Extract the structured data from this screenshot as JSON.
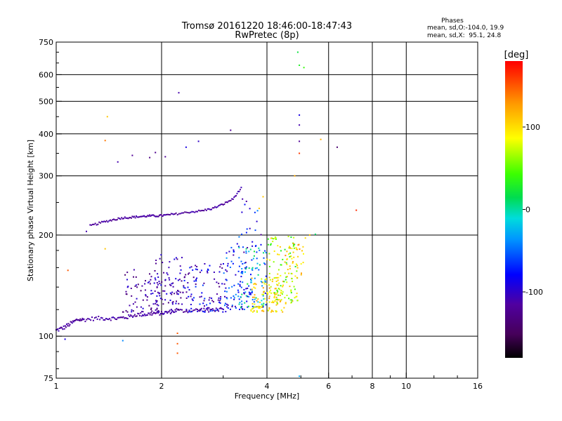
{
  "chart_data": {
    "type": "scatter",
    "title": "Tromsø 20161220 18:46:00-18:47:43",
    "subtitle": "RwPretec (8p)",
    "xlabel": "Frequency [MHz]",
    "ylabel": "Stationary phase Virtual Height [km]",
    "xscale": "log",
    "yscale": "log",
    "xlim": [
      1,
      16
    ],
    "ylim": [
      75,
      750
    ],
    "xticks": [
      1,
      2,
      4,
      6,
      8,
      10,
      16
    ],
    "yticks": [
      75,
      100,
      200,
      300,
      400,
      500,
      600,
      750
    ],
    "xgrid": [
      2,
      4,
      6,
      8,
      10
    ],
    "ygrid": [
      100,
      200,
      300,
      400,
      500,
      600
    ],
    "stats": {
      "heading": "Phases",
      "line1": "mean, sd,O:-104.0, 19.9",
      "line2": "mean, sd,X:  95.1, 24.8"
    },
    "colorbar": {
      "label": "[deg]",
      "min": -180,
      "max": 180,
      "ticks": [
        100,
        0,
        -100
      ],
      "tick_labels": [
        "100",
        "0",
        "-100"
      ]
    },
    "series_trace": [
      {
        "name": "F-trace lower",
        "phase": -115,
        "x": [
          1.0,
          1.05,
          1.1,
          1.15,
          1.2,
          1.3,
          1.4,
          1.5,
          1.6,
          1.7,
          1.8,
          1.9,
          2.0,
          2.1,
          2.2,
          2.4,
          2.6,
          2.8,
          3.0
        ],
        "y": [
          104,
          106,
          109,
          112,
          112,
          113,
          113,
          113,
          114,
          116,
          116,
          117,
          117,
          118,
          119,
          119,
          120,
          120,
          120
        ]
      },
      {
        "name": "F-trace upper",
        "phase": -115,
        "x": [
          1.25,
          1.35,
          1.45,
          1.55,
          1.65,
          1.75,
          1.85,
          1.95,
          2.05,
          2.2,
          2.4,
          2.6,
          2.8,
          3.0,
          3.2,
          3.4
        ],
        "y": [
          213,
          218,
          222,
          225,
          226,
          227,
          228,
          228,
          229,
          231,
          234,
          236,
          240,
          247,
          256,
          278
        ]
      }
    ],
    "series_scatter": [
      {
        "x": 1.22,
        "y": 205,
        "phase": -110
      },
      {
        "x": 1.38,
        "y": 382,
        "phase": 140
      },
      {
        "x": 1.4,
        "y": 450,
        "phase": 110
      },
      {
        "x": 1.38,
        "y": 182,
        "phase": 110
      },
      {
        "x": 1.08,
        "y": 157,
        "phase": 150
      },
      {
        "x": 1.06,
        "y": 98,
        "phase": -90
      },
      {
        "x": 1.5,
        "y": 330,
        "phase": -110
      },
      {
        "x": 1.65,
        "y": 345,
        "phase": -120
      },
      {
        "x": 1.85,
        "y": 340,
        "phase": -130
      },
      {
        "x": 1.92,
        "y": 352,
        "phase": -125
      },
      {
        "x": 2.05,
        "y": 342,
        "phase": -120
      },
      {
        "x": 2.24,
        "y": 530,
        "phase": -110
      },
      {
        "x": 2.35,
        "y": 365,
        "phase": -90
      },
      {
        "x": 2.55,
        "y": 380,
        "phase": -100
      },
      {
        "x": 3.15,
        "y": 410,
        "phase": -120
      },
      {
        "x": 1.55,
        "y": 97,
        "phase": -40
      },
      {
        "x": 2.22,
        "y": 102,
        "phase": 150
      },
      {
        "x": 2.22,
        "y": 95,
        "phase": 150
      },
      {
        "x": 2.22,
        "y": 89,
        "phase": 150
      },
      {
        "x": 4.9,
        "y": 700,
        "phase": 20
      },
      {
        "x": 4.95,
        "y": 640,
        "phase": 30
      },
      {
        "x": 5.1,
        "y": 630,
        "phase": 40
      },
      {
        "x": 4.95,
        "y": 455,
        "phase": -90
      },
      {
        "x": 4.95,
        "y": 425,
        "phase": -110
      },
      {
        "x": 4.95,
        "y": 380,
        "phase": -120
      },
      {
        "x": 4.95,
        "y": 350,
        "phase": 160
      },
      {
        "x": 5.7,
        "y": 385,
        "phase": 120
      },
      {
        "x": 6.35,
        "y": 365,
        "phase": -140
      },
      {
        "x": 7.2,
        "y": 237,
        "phase": 165
      },
      {
        "x": 4.8,
        "y": 300,
        "phase": 120
      },
      {
        "x": 3.8,
        "y": 240,
        "phase": 110
      },
      {
        "x": 3.9,
        "y": 260,
        "phase": 110
      },
      {
        "x": 5.15,
        "y": 196,
        "phase": 100
      },
      {
        "x": 5.3,
        "y": 200,
        "phase": 110
      },
      {
        "x": 5.5,
        "y": 201,
        "phase": 10
      },
      {
        "x": 4.95,
        "y": 76,
        "phase": -30
      }
    ],
    "series_clouds": [
      {
        "x": [
          1.55,
          2.0
        ],
        "y": [
          118,
          160
        ],
        "n": 70,
        "phase": -115,
        "spread": 25
      },
      {
        "x": [
          1.9,
          2.3
        ],
        "y": [
          120,
          175
        ],
        "n": 80,
        "phase": -110,
        "spread": 25
      },
      {
        "x": [
          2.3,
          3.1
        ],
        "y": [
          118,
          165
        ],
        "n": 110,
        "phase": -95,
        "spread": 35
      },
      {
        "x": [
          3.0,
          3.6
        ],
        "y": [
          120,
          190
        ],
        "n": 80,
        "phase": -75,
        "spread": 45
      },
      {
        "x": [
          3.3,
          4.0
        ],
        "y": [
          122,
          185
        ],
        "n": 90,
        "phase": -30,
        "spread": 60
      },
      {
        "x": [
          3.6,
          4.5
        ],
        "y": [
          118,
          150
        ],
        "n": 110,
        "phase": 100,
        "spread": 30
      },
      {
        "x": [
          4.0,
          4.9
        ],
        "y": [
          125,
          200
        ],
        "n": 110,
        "phase": 70,
        "spread": 45
      },
      {
        "x": [
          4.5,
          5.1
        ],
        "y": [
          150,
          190
        ],
        "n": 30,
        "phase": 110,
        "spread": 25
      },
      {
        "x": [
          3.3,
          3.9
        ],
        "y": [
          185,
          260
        ],
        "n": 20,
        "phase": -80,
        "spread": 40
      }
    ]
  }
}
